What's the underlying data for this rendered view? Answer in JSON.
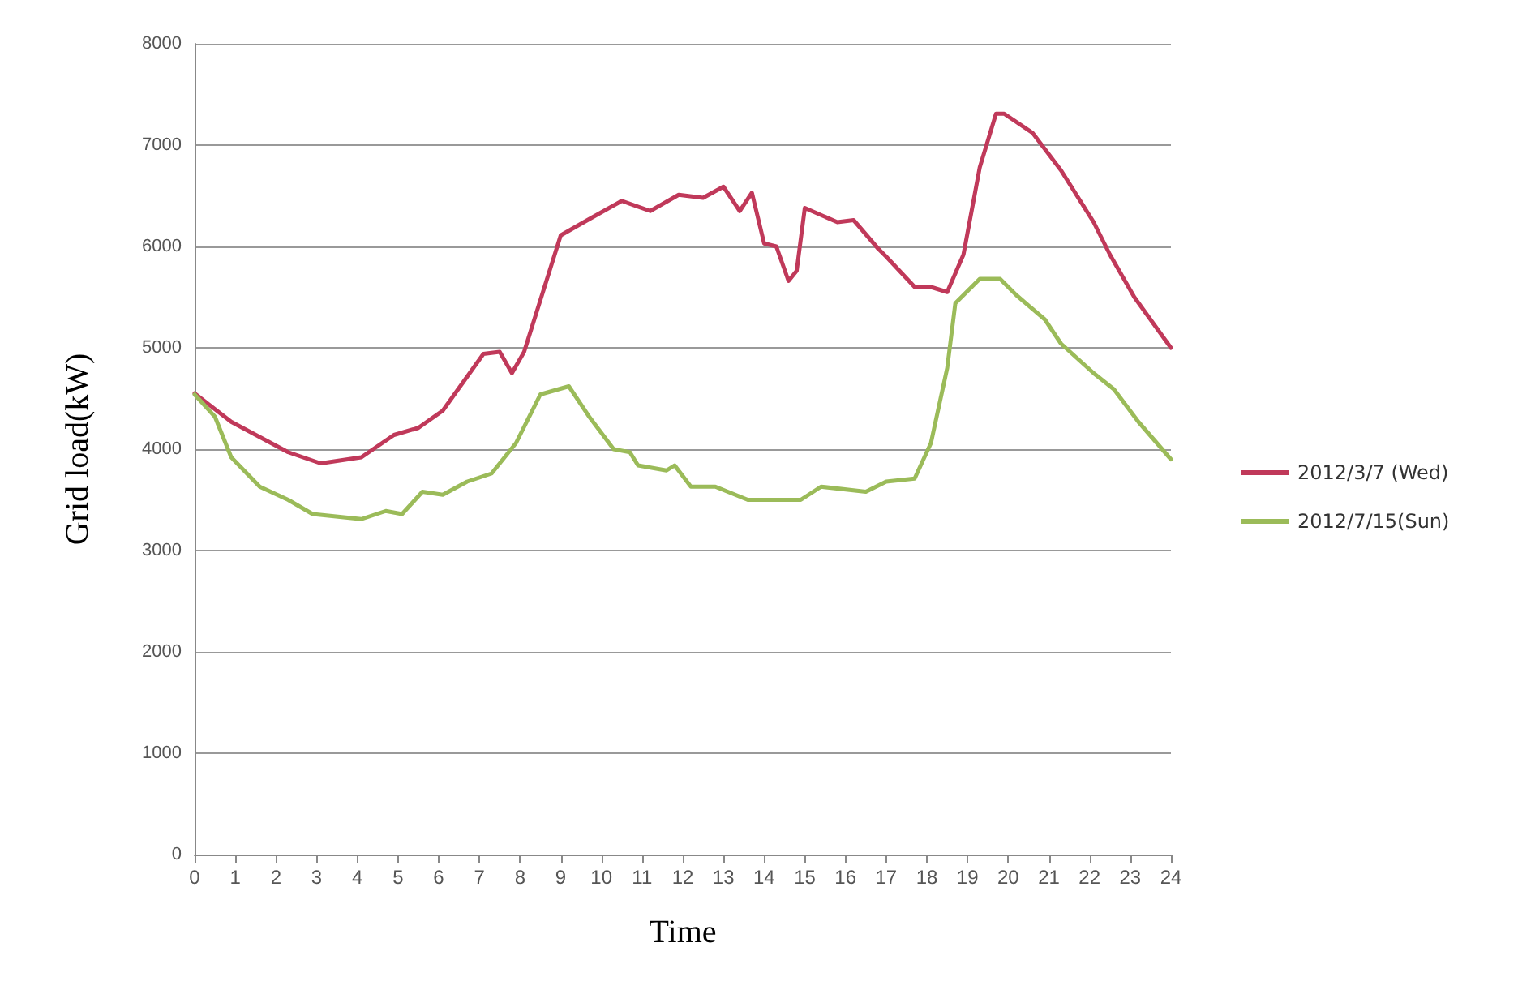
{
  "chart_data": {
    "type": "line",
    "xlabel": "Time",
    "ylabel": "Grid load(kW)",
    "xlim": [
      0,
      24
    ],
    "xticks": [
      0,
      1,
      2,
      3,
      4,
      5,
      6,
      7,
      8,
      9,
      10,
      11,
      12,
      13,
      14,
      15,
      16,
      17,
      18,
      19,
      20,
      21,
      22,
      23,
      24
    ],
    "ylim": [
      0,
      8000
    ],
    "yticks": [
      0,
      1000,
      2000,
      3000,
      4000,
      5000,
      6000,
      7000,
      8000
    ],
    "grid": "y",
    "legend": "right",
    "marker": "none",
    "line_style": "solid",
    "series": [
      {
        "name": "2012/3/7 (Wed)",
        "color": "#c0395a",
        "x": [
          0,
          0.9,
          2.3,
          3.1,
          4.1,
          4.9,
          5.5,
          6.1,
          7.1,
          7.5,
          7.8,
          8.1,
          9.0,
          9.7,
          10.5,
          11.2,
          11.9,
          12.5,
          13.0,
          13.4,
          13.7,
          14.0,
          14.3,
          14.6,
          14.8,
          15.0,
          15.8,
          16.2,
          16.8,
          17.0,
          17.7,
          18.1,
          18.5,
          18.9,
          19.3,
          19.7,
          19.9,
          20.6,
          21.3,
          22.1,
          22.5,
          23.1,
          24
        ],
        "values": [
          4550,
          4270,
          3970,
          3860,
          3920,
          4140,
          4210,
          4380,
          4940,
          4960,
          4750,
          4960,
          6110,
          6270,
          6450,
          6350,
          6510,
          6480,
          6590,
          6350,
          6530,
          6030,
          6000,
          5660,
          5760,
          6380,
          6240,
          6260,
          5980,
          5900,
          5600,
          5600,
          5550,
          5920,
          6780,
          7310,
          7310,
          7120,
          6750,
          6240,
          5920,
          5500,
          5000
        ]
      },
      {
        "name": "2012/7/15(Sun)",
        "color": "#9bbb59",
        "x": [
          0,
          0.5,
          0.9,
          1.6,
          2.3,
          2.9,
          4.1,
          4.7,
          5.1,
          5.6,
          6.1,
          6.7,
          7.3,
          7.9,
          8.5,
          9.2,
          9.7,
          10.3,
          10.7,
          10.9,
          11.6,
          11.8,
          12.2,
          12.8,
          13.6,
          14.9,
          15.4,
          16.5,
          17.0,
          17.7,
          18.1,
          18.5,
          18.7,
          19.3,
          19.8,
          20.2,
          20.9,
          21.3,
          22.1,
          22.6,
          23.2,
          24
        ],
        "values": [
          4540,
          4320,
          3920,
          3630,
          3500,
          3360,
          3310,
          3390,
          3360,
          3580,
          3550,
          3680,
          3760,
          4060,
          4540,
          4620,
          4320,
          4000,
          3970,
          3840,
          3790,
          3840,
          3630,
          3630,
          3500,
          3500,
          3630,
          3580,
          3680,
          3710,
          4060,
          4800,
          5440,
          5680,
          5680,
          5520,
          5280,
          5040,
          4750,
          4590,
          4270,
          3900
        ]
      }
    ]
  }
}
